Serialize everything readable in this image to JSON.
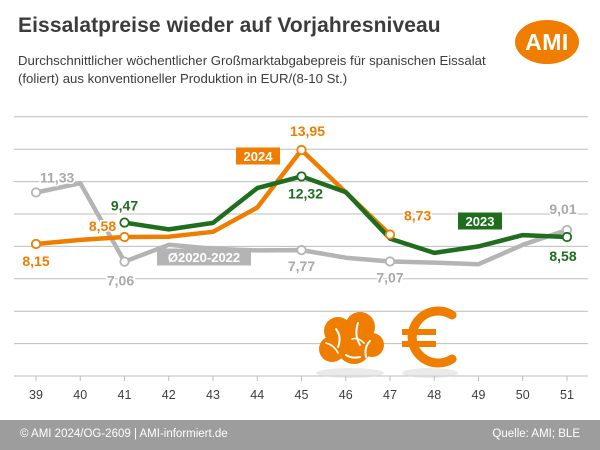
{
  "header": {
    "title": "Eissalatpreise wieder auf Vorjahresniveau",
    "subtitle": "Durchschnittlicher wöchentlicher Großmarktabgabepreis für spanischen Eissalat (foliert) aus konventioneller Produktion in EUR/(8-10 St.)",
    "logo_text": "AMI"
  },
  "footer": {
    "copyright": "© AMI 2024/OG-2609 | AMI-informiert.de",
    "source": "Quelle: AMI; BLE"
  },
  "colors": {
    "series_2024": "#ef7d00",
    "series_2023": "#1e6e1e",
    "series_avg": "#b4b4b4",
    "grid": "#bdbdbd",
    "footer_bg": "#9d9d9d",
    "lettuce_icon": "#ef7d00",
    "euro_icon": "#ef7d00"
  },
  "icons": [
    "lettuce-icon",
    "euro-icon"
  ],
  "chart_data": {
    "type": "line",
    "categories": [
      "39",
      "40",
      "41",
      "42",
      "43",
      "44",
      "45",
      "46",
      "47",
      "48",
      "49",
      "50",
      "51"
    ],
    "ylim": [
      0,
      16
    ],
    "grid": true,
    "series": [
      {
        "key": "avg",
        "name": "Ø2020-2022",
        "values": [
          11.33,
          11.9,
          7.06,
          8.1,
          7.85,
          7.75,
          7.77,
          7.3,
          7.07,
          7.0,
          6.9,
          8.1,
          9.01
        ]
      },
      {
        "key": "y2024",
        "name": "2024",
        "values": [
          8.15,
          8.4,
          8.58,
          8.6,
          8.9,
          10.4,
          13.95,
          null,
          8.73,
          null,
          null,
          null,
          null
        ]
      },
      {
        "key": "y2023",
        "name": "2023",
        "values": [
          null,
          null,
          9.47,
          9.05,
          9.45,
          11.6,
          12.32,
          11.35,
          8.48,
          7.6,
          8.0,
          8.7,
          8.58
        ]
      }
    ],
    "point_labels": [
      {
        "series": "avg",
        "index": 0,
        "text": "11,33"
      },
      {
        "series": "avg",
        "index": 2,
        "text": "7,06"
      },
      {
        "series": "avg",
        "index": 6,
        "text": "7,77"
      },
      {
        "series": "avg",
        "index": 8,
        "text": "7,07"
      },
      {
        "series": "avg",
        "index": 12,
        "text": "9,01"
      },
      {
        "series": "y2024",
        "index": 0,
        "text": "8,15"
      },
      {
        "series": "y2024",
        "index": 2,
        "text": "8,58"
      },
      {
        "series": "y2024",
        "index": 6,
        "text": "13,95"
      },
      {
        "series": "y2024",
        "index": 8,
        "text": "8,73"
      },
      {
        "series": "y2023",
        "index": 2,
        "text": "9,47"
      },
      {
        "series": "y2023",
        "index": 6,
        "text": "12,32"
      },
      {
        "series": "y2023",
        "index": 12,
        "text": "8,58"
      }
    ]
  }
}
